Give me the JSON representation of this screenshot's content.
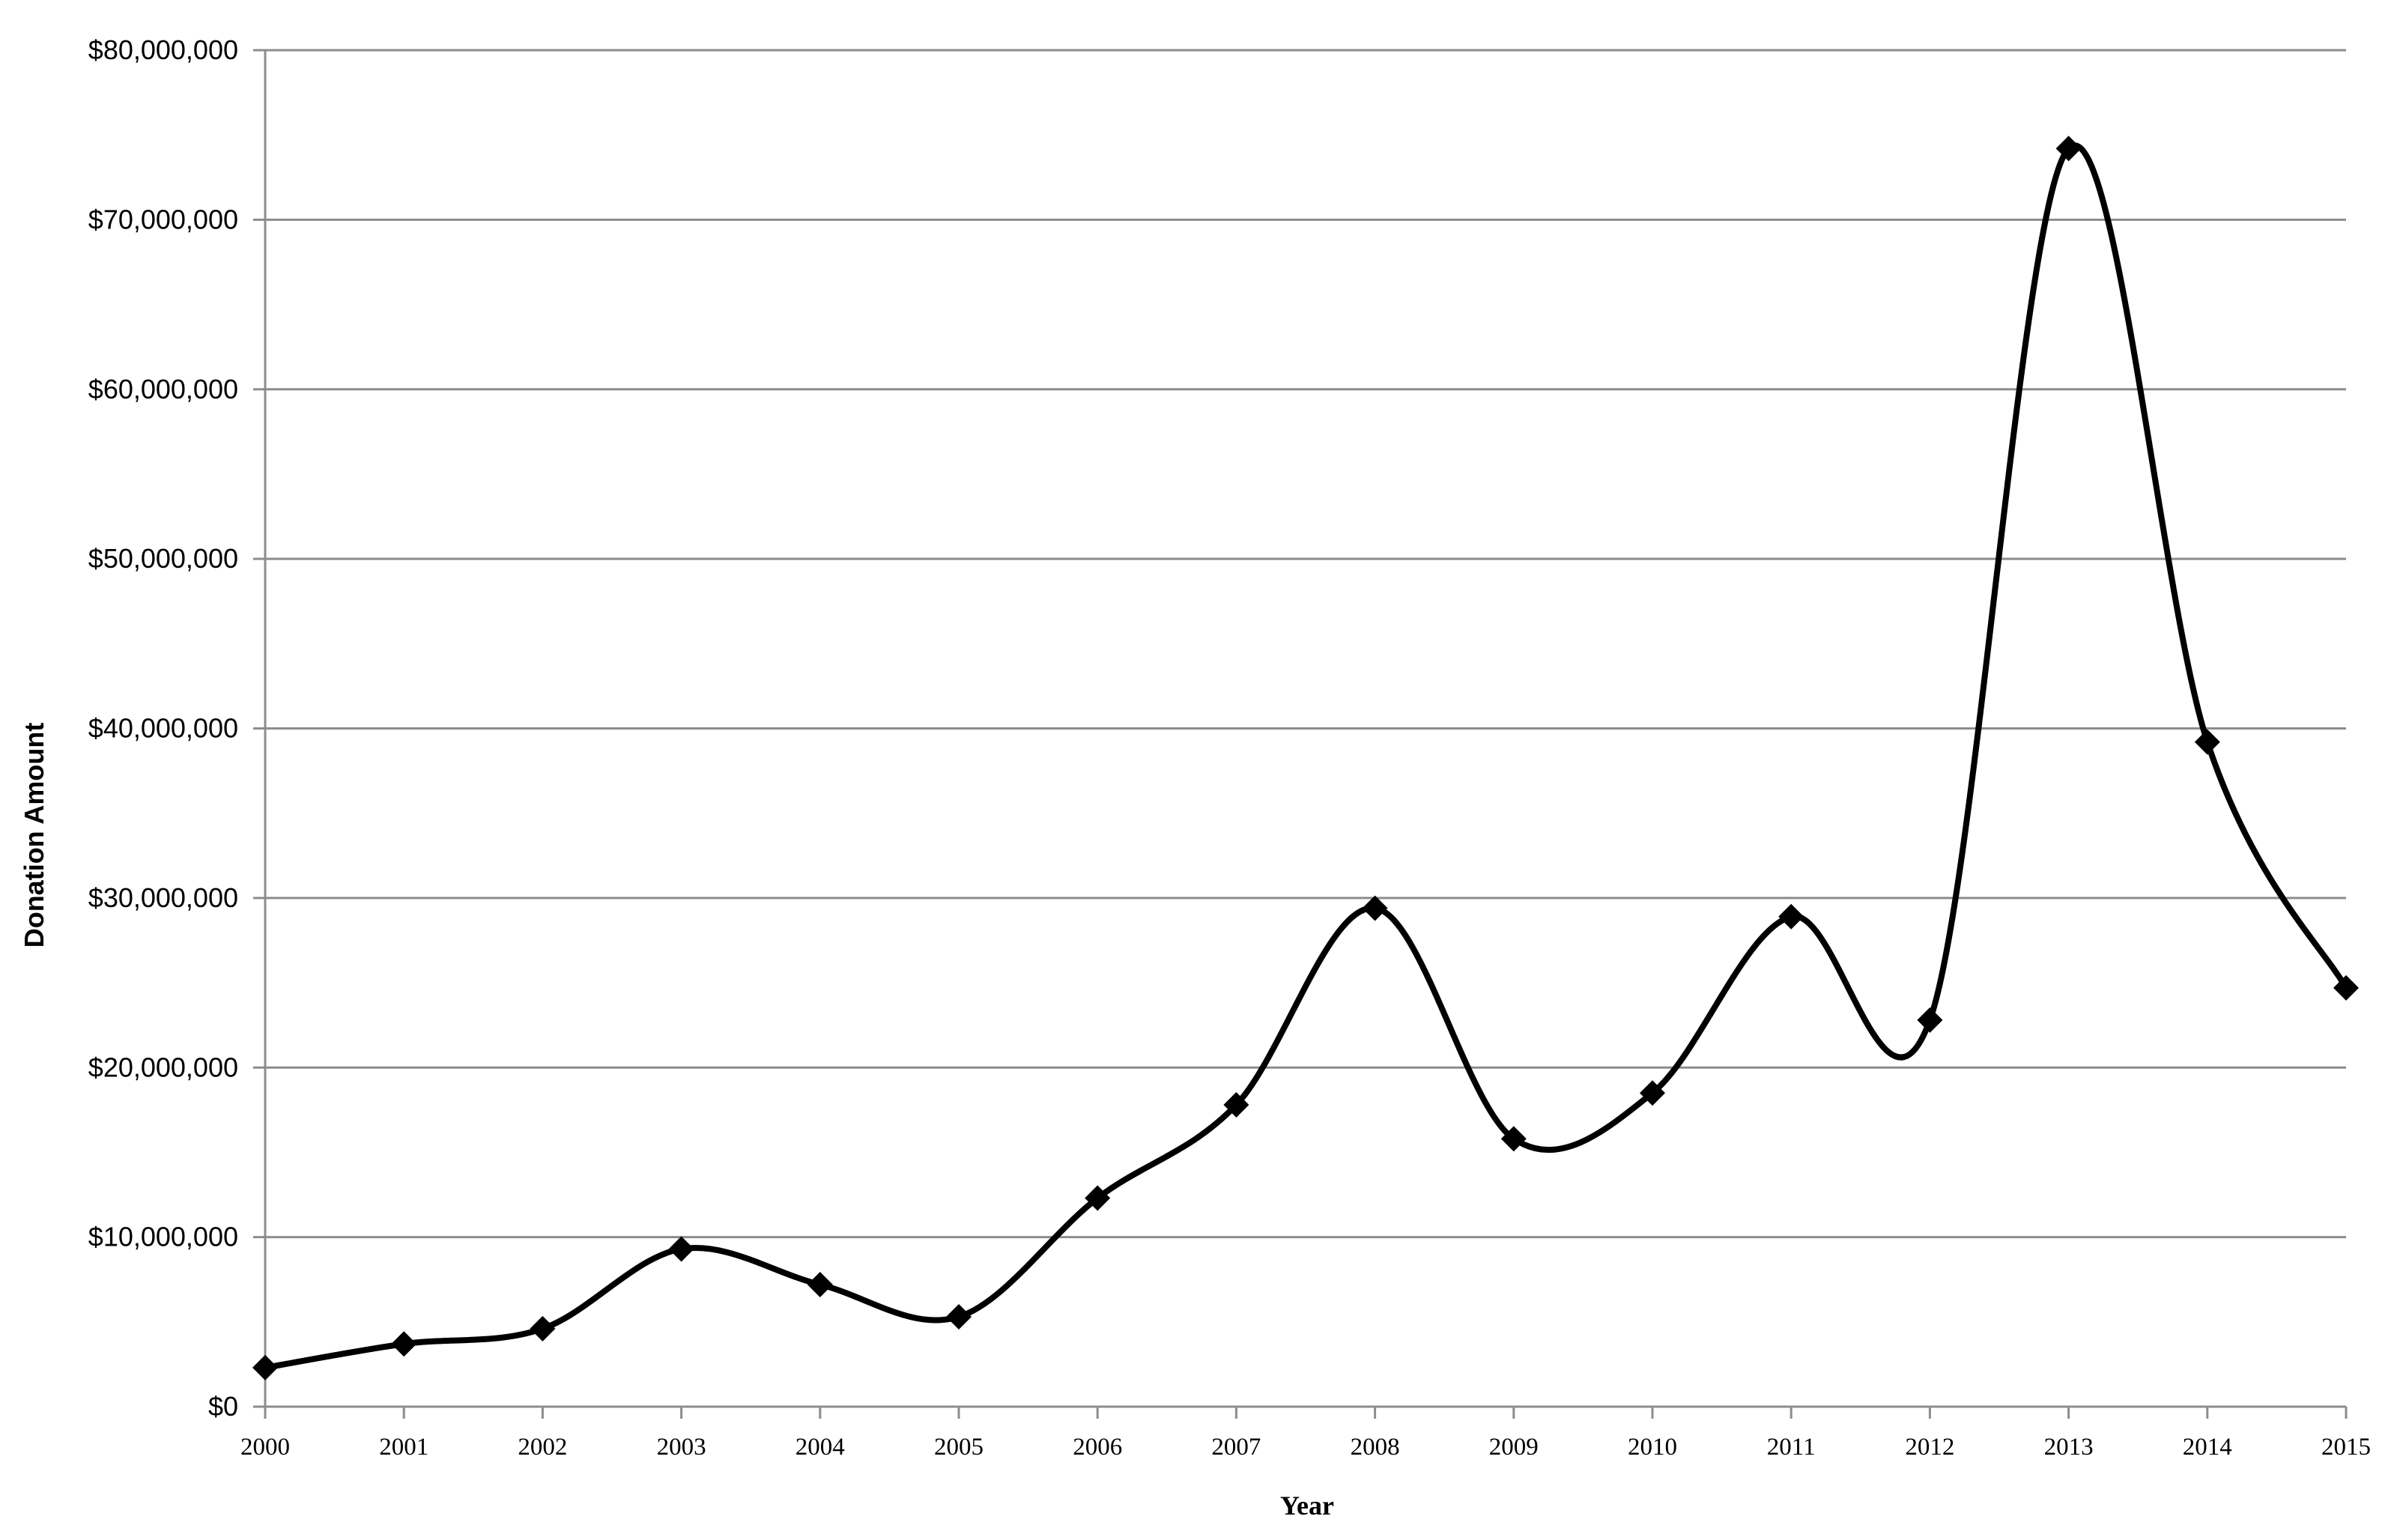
{
  "chart_data": {
    "type": "line",
    "title": "",
    "xlabel": "Year",
    "ylabel": "Donation Amount",
    "x": [
      "2000",
      "2001",
      "2002",
      "2003",
      "2004",
      "2005",
      "2006",
      "2007",
      "2008",
      "2009",
      "2010",
      "2011",
      "2012",
      "2013",
      "2014",
      "2015"
    ],
    "series": [
      {
        "values": [
          2300000,
          3700000,
          4600000,
          9300000,
          7200000,
          5300000,
          12300000,
          17800000,
          29400000,
          15800000,
          18500000,
          28900000,
          22800000,
          74200000,
          39200000,
          24700000
        ]
      }
    ],
    "ylim": [
      0,
      80000000
    ],
    "yticks": [
      0,
      10000000,
      20000000,
      30000000,
      40000000,
      50000000,
      60000000,
      70000000,
      80000000
    ],
    "ytick_labels": [
      "$0",
      "$10,000,000",
      "$20,000,000",
      "$30,000,000",
      "$40,000,000",
      "$50,000,000",
      "$60,000,000",
      "$70,000,000",
      "$80,000,000"
    ],
    "grid": true,
    "smooth": true,
    "marker": "diamond",
    "line_color": "#000000",
    "grid_color": "#8c8c8c"
  }
}
